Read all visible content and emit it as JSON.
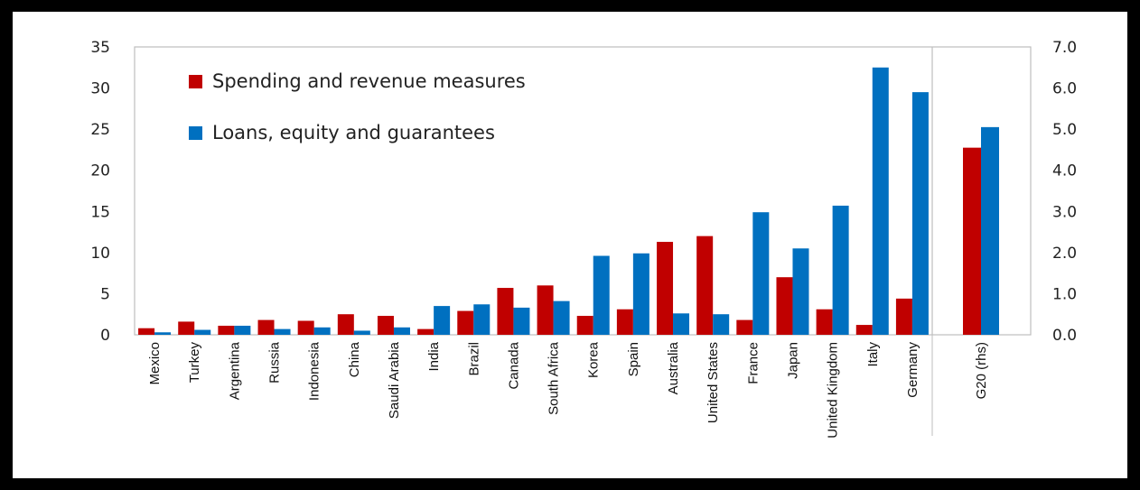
{
  "chart_data": {
    "type": "bar",
    "title": "",
    "xlabel": "",
    "ylabel": "",
    "categories": [
      "Mexico",
      "Turkey",
      "Argentina",
      "Russia",
      "Indonesia",
      "China",
      "Saudi Arabia",
      "India",
      "Brazil",
      "Canada",
      "South Africa",
      "Korea",
      "Spain",
      "Australia",
      "United States",
      "France",
      "Japan",
      "United Kingdom",
      "Italy",
      "Germany"
    ],
    "series": [
      {
        "name": "Spending and revenue measures",
        "color": "#c00000",
        "values": [
          0.8,
          1.6,
          1.1,
          1.8,
          1.7,
          2.5,
          2.3,
          0.7,
          2.9,
          5.7,
          6.0,
          2.3,
          3.1,
          11.3,
          12.0,
          1.8,
          7.0,
          3.1,
          1.2,
          4.4
        ]
      },
      {
        "name": "Loans, equity and guarantees",
        "color": "#0070c0",
        "values": [
          0.3,
          0.6,
          1.1,
          0.7,
          0.9,
          0.5,
          0.9,
          3.5,
          3.7,
          3.3,
          4.1,
          9.6,
          9.9,
          2.6,
          2.5,
          14.9,
          10.5,
          15.7,
          32.5,
          29.5
        ]
      }
    ],
    "ylim": [
      0,
      35
    ],
    "yticks": [
      "0",
      "5",
      "10",
      "15",
      "20",
      "25",
      "30",
      "35"
    ],
    "secondary": {
      "category": "G20 (rhs)",
      "values": [
        4.55,
        5.05
      ],
      "ylim": [
        0,
        7
      ],
      "yticks": [
        "0.0",
        "1.0",
        "2.0",
        "3.0",
        "4.0",
        "5.0",
        "6.0",
        "7.0"
      ]
    },
    "legend_position": "top-left",
    "grid": false
  }
}
